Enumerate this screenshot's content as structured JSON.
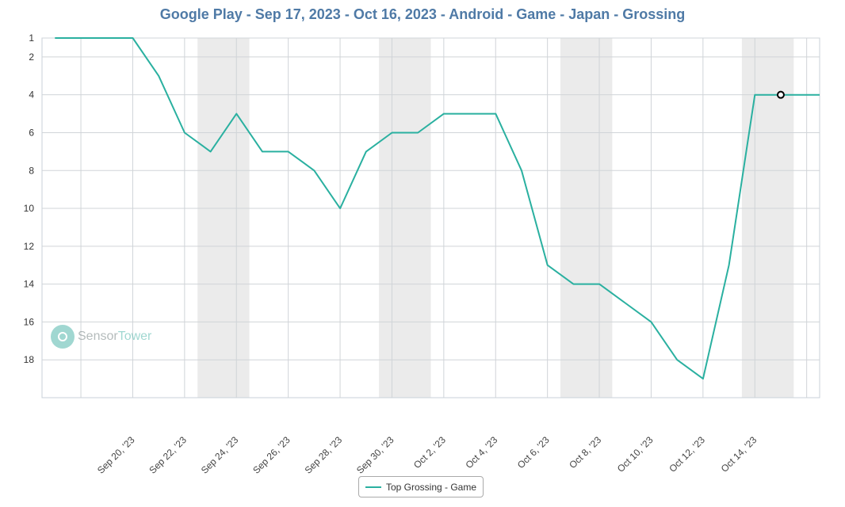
{
  "chart_data": {
    "type": "line",
    "title": "Google Play - Sep 17, 2023 - Oct 16, 2023 - Android - Game - Japan - Grossing",
    "x": [
      "2023-09-17",
      "2023-09-18",
      "2023-09-19",
      "2023-09-20",
      "2023-09-21",
      "2023-09-22",
      "2023-09-23",
      "2023-09-24",
      "2023-09-25",
      "2023-09-26",
      "2023-09-27",
      "2023-09-28",
      "2023-09-29",
      "2023-09-30",
      "2023-10-01",
      "2023-10-02",
      "2023-10-03",
      "2023-10-04",
      "2023-10-05",
      "2023-10-06",
      "2023-10-07",
      "2023-10-08",
      "2023-10-09",
      "2023-10-10",
      "2023-10-11",
      "2023-10-12",
      "2023-10-13",
      "2023-10-14",
      "2023-10-15",
      "2023-10-16"
    ],
    "series": [
      {
        "name": "Top Grossing - Game",
        "color": "#2ab0a0",
        "values": [
          1,
          1,
          1,
          1,
          3,
          6,
          7,
          5,
          7,
          7,
          8,
          10,
          7,
          6,
          6,
          5,
          5,
          5,
          8,
          13,
          14,
          14,
          15,
          16,
          18,
          19,
          13,
          4,
          4,
          4
        ]
      }
    ],
    "x_tick_labels": [
      "Sep 20, '23",
      "Sep 22, '23",
      "Sep 24, '23",
      "Sep 26, '23",
      "Sep 28, '23",
      "Sep 30, '23",
      "Oct 2, '23",
      "Oct 4, '23",
      "Oct 6, '23",
      "Oct 8, '23",
      "Oct 10, '23",
      "Oct 12, '23",
      "Oct 14, '23"
    ],
    "y_tick_labels": [
      "1",
      "2",
      "4",
      "6",
      "8",
      "10",
      "12",
      "14",
      "16",
      "18"
    ],
    "ylim": [
      1,
      20
    ],
    "y_reversed": true,
    "grid": true,
    "weekend_shading": true,
    "shade_color": "#ebebeb",
    "legend_position": "bottom-center",
    "highlighted_point": "2023-10-15"
  },
  "watermark": {
    "part1": "Sensor",
    "part2": "Tower"
  }
}
